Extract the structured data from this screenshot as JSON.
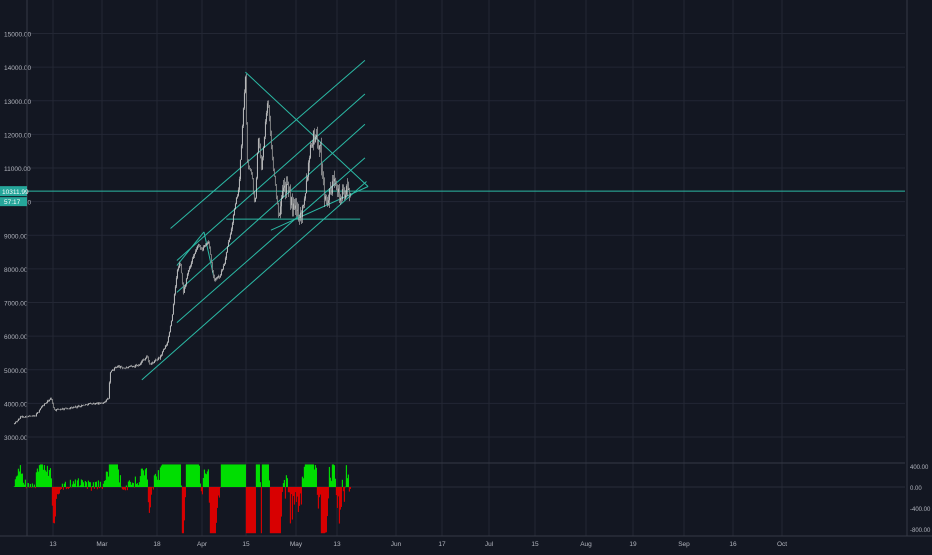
{
  "chart_data": [
    {
      "type": "candlestick",
      "title": "",
      "price_axis": {
        "ticks": [
          "3000.00",
          "4000.00",
          "5000.00",
          "6000.00",
          "7000.00",
          "8000.00",
          "9000.00",
          "10000.00",
          "11000.00",
          "12000.00",
          "13000.00",
          "14000.00",
          "15000.00"
        ],
        "range": [
          2700,
          15300
        ],
        "last_price_label": "10311.99",
        "secondary_label": "57:17"
      },
      "time_axis": {
        "labels": [
          "13",
          "Mar",
          "18",
          "Apr",
          "15",
          "May",
          "13",
          "Jun",
          "17",
          "Jul",
          "15",
          "Aug",
          "19",
          "Sep",
          "16",
          "Oct"
        ]
      },
      "series_shape": [
        [
          "2019-02-01",
          3400
        ],
        [
          "2019-02-05",
          3600
        ],
        [
          "2019-02-14",
          3620
        ],
        [
          "2019-02-18",
          3900
        ],
        [
          "2019-02-24",
          4150
        ],
        [
          "2019-02-26",
          3800
        ],
        [
          "2019-03-10",
          3880
        ],
        [
          "2019-03-20",
          3990
        ],
        [
          "2019-03-28",
          4000
        ],
        [
          "2019-04-01",
          4150
        ],
        [
          "2019-04-02",
          4900
        ],
        [
          "2019-04-06",
          5100
        ],
        [
          "2019-04-12",
          5050
        ],
        [
          "2019-04-20",
          5150
        ],
        [
          "2019-04-25",
          5400
        ],
        [
          "2019-04-27",
          5150
        ],
        [
          "2019-05-03",
          5350
        ],
        [
          "2019-05-08",
          5800
        ],
        [
          "2019-05-11",
          6600
        ],
        [
          "2019-05-14",
          7900
        ],
        [
          "2019-05-16",
          8200
        ],
        [
          "2019-05-18",
          7300
        ],
        [
          "2019-05-21",
          7900
        ],
        [
          "2019-05-27",
          8700
        ],
        [
          "2019-05-30",
          8600
        ],
        [
          "2019-06-03",
          8800
        ],
        [
          "2019-06-06",
          7700
        ],
        [
          "2019-06-10",
          7800
        ],
        [
          "2019-06-13",
          8200
        ],
        [
          "2019-06-17",
          9200
        ],
        [
          "2019-06-22",
          10500
        ],
        [
          "2019-06-26",
          13800
        ],
        [
          "2019-06-27",
          11200
        ],
        [
          "2019-06-30",
          10800
        ],
        [
          "2019-07-02",
          9800
        ],
        [
          "2019-07-04",
          12000
        ],
        [
          "2019-07-06",
          11000
        ],
        [
          "2019-07-10",
          13100
        ],
        [
          "2019-07-13",
          11200
        ],
        [
          "2019-07-17",
          9500
        ],
        [
          "2019-07-19",
          10500
        ],
        [
          "2019-07-22",
          10400
        ],
        [
          "2019-07-26",
          9800
        ],
        [
          "2019-07-31",
          9600
        ],
        [
          "2019-08-03",
          10500
        ],
        [
          "2019-08-06",
          11800
        ],
        [
          "2019-08-09",
          12000
        ],
        [
          "2019-08-12",
          11500
        ],
        [
          "2019-08-15",
          10000
        ],
        [
          "2019-08-19",
          10300
        ],
        [
          "2019-08-21",
          10900
        ],
        [
          "2019-08-24",
          10100
        ],
        [
          "2019-08-28",
          10300
        ],
        [
          "2019-08-31",
          10311
        ]
      ],
      "trendlines": [
        {
          "from": [
            "2019-04-22",
            4700
          ],
          "to": [
            "2019-09-10",
            10600
          ],
          "label": "channel-lower"
        },
        {
          "from": [
            "2019-05-14",
            6400
          ],
          "to": [
            "2019-09-09",
            11300
          ],
          "label": "channel-inner-1"
        },
        {
          "from": [
            "2019-05-14",
            7300
          ],
          "to": [
            "2019-09-09",
            12300
          ],
          "label": "channel-inner-2"
        },
        {
          "from": [
            "2019-05-14",
            8250
          ],
          "to": [
            "2019-09-09",
            13200
          ],
          "label": "channel-inner-3"
        },
        {
          "from": [
            "2019-05-10",
            9200
          ],
          "to": [
            "2019-09-09",
            14200
          ],
          "label": "channel-upper"
        },
        {
          "from": [
            "2019-06-26",
            13850
          ],
          "to": [
            "2019-09-11",
            10450
          ],
          "label": "descending-resistance"
        },
        {
          "from": [
            "2019-07-12",
            9150
          ],
          "to": [
            "2019-09-11",
            10450
          ],
          "label": "triangle-support"
        },
        {
          "from": [
            "2019-06-14",
            9480
          ],
          "to": [
            "2019-09-06",
            9480
          ],
          "label": "horizontal-support"
        },
        {
          "from": [
            "2019-05-14",
            8100
          ],
          "to": [
            "2019-05-31",
            9100
          ],
          "label": "flag-upper"
        },
        {
          "from": [
            "2019-05-31",
            9100
          ],
          "to": [
            "2019-06-06",
            7800
          ],
          "label": "flag-down"
        },
        {
          "from": [
            "2019-01-26",
            10311
          ],
          "to": [
            "2019-10-30",
            10311
          ],
          "label": "last-price-line"
        }
      ],
      "oscillator": {
        "ticks": [
          "400.00",
          "0.00",
          "-400.00",
          "-800.00"
        ],
        "range": [
          -900,
          450
        ]
      },
      "colors": {
        "background": "#131722",
        "grid": "#232734",
        "line": "#2bb9a4",
        "price_label_bg": "#26a69a",
        "osc_up": "#00e600",
        "osc_down": "#e00000",
        "candle": "#c7c7c7"
      }
    }
  ]
}
